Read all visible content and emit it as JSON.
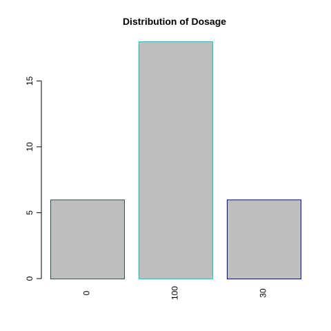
{
  "chart_data": {
    "type": "bar",
    "title": "Distribution of Dosage",
    "xlabel": "",
    "ylabel": "",
    "categories": [
      "0",
      "100",
      "30"
    ],
    "values": [
      6,
      18,
      6
    ],
    "ylim": [
      0,
      18
    ],
    "yticks": [
      0,
      5,
      10,
      15
    ],
    "bar_fill": "#bebebe",
    "bar_borders": [
      "#2f4f4f",
      "#00cdcd",
      "#0000cd"
    ],
    "grid": false,
    "legend": "none"
  }
}
